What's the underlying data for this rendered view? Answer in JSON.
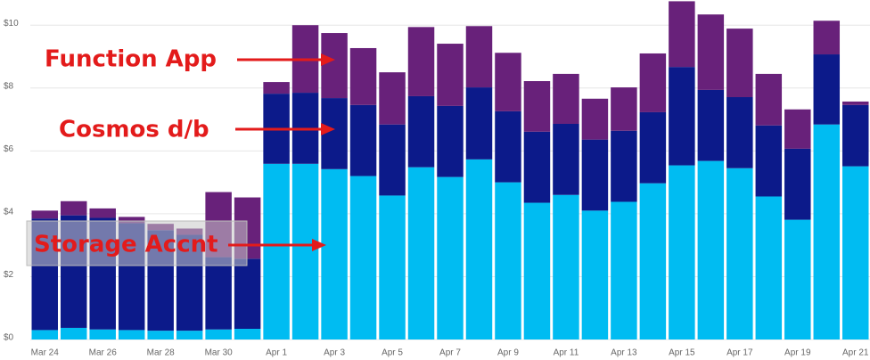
{
  "chart_data": {
    "type": "stacked-bar",
    "categories": [
      "Mar 24",
      null,
      "Mar 26",
      null,
      "Mar 28",
      null,
      "Mar 30",
      null,
      "Apr 1",
      null,
      "Apr 3",
      null,
      "Apr 5",
      null,
      "Apr 7",
      null,
      "Apr 9",
      null,
      "Apr 11",
      null,
      "Apr 13",
      null,
      "Apr 15",
      null,
      "Apr 17",
      null,
      "Apr 19",
      null,
      "Apr 21"
    ],
    "series": [
      {
        "name": "Storage Accnt",
        "color": "#00bcf2",
        "values": [
          0.3,
          0.37,
          0.32,
          0.3,
          0.28,
          0.28,
          0.32,
          0.34,
          5.59,
          5.59,
          5.42,
          5.2,
          4.58,
          5.48,
          5.17,
          5.73,
          5.0,
          4.35,
          4.6,
          4.1,
          4.38,
          4.97,
          5.54,
          5.68,
          5.45,
          4.55,
          3.81,
          6.84,
          5.51
        ]
      },
      {
        "name": "Cosmos d/b",
        "color": "#0c1a8a",
        "values": [
          3.55,
          3.58,
          3.55,
          3.4,
          3.2,
          3.05,
          2.3,
          2.23,
          2.23,
          2.26,
          2.26,
          2.26,
          2.26,
          2.26,
          2.26,
          2.29,
          2.26,
          2.26,
          2.26,
          2.26,
          2.26,
          2.26,
          3.13,
          2.26,
          2.26,
          2.26,
          2.26,
          2.23,
          1.95
        ]
      },
      {
        "name": "Function App",
        "color": "#68217a",
        "values": [
          0.25,
          0.45,
          0.3,
          0.2,
          0.2,
          0.2,
          2.07,
          1.95,
          0.37,
          2.15,
          2.07,
          1.81,
          1.66,
          2.2,
          1.98,
          1.95,
          1.86,
          1.61,
          1.59,
          1.3,
          1.38,
          1.87,
          2.09,
          2.4,
          2.18,
          1.64,
          1.25,
          1.07,
          0.11
        ]
      }
    ],
    "ylim": [
      0,
      10.8
    ],
    "yticks": [
      {
        "value": 0,
        "label": "$0"
      },
      {
        "value": 2,
        "label": "$2"
      },
      {
        "value": 4,
        "label": "$4"
      },
      {
        "value": 6,
        "label": "$6"
      },
      {
        "value": 8,
        "label": "$8"
      },
      {
        "value": 10,
        "label": "$10"
      }
    ],
    "grid": true
  }
}
